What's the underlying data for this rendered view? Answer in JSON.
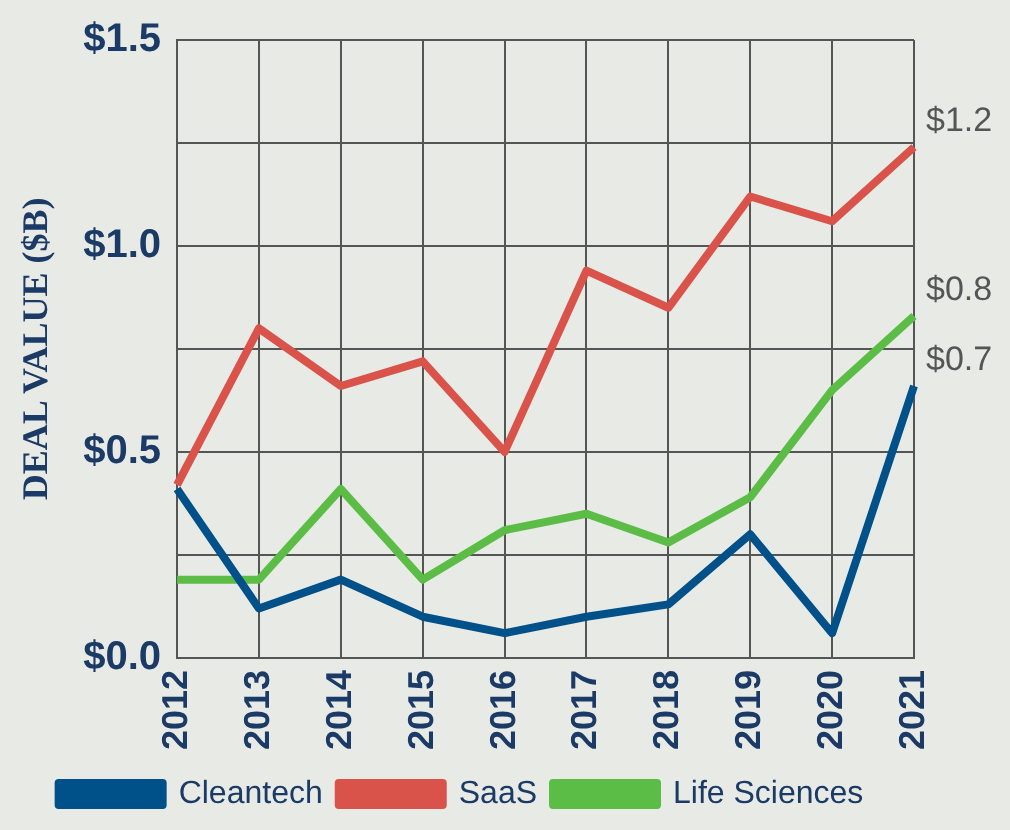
{
  "chart_data": {
    "type": "line",
    "ylabel": "DEAL VALUE ($B)",
    "categories": [
      "2012",
      "2013",
      "2014",
      "2015",
      "2016",
      "2017",
      "2018",
      "2019",
      "2020",
      "2021"
    ],
    "series": [
      {
        "name": "Cleantech",
        "color": "#00508a",
        "values": [
          0.41,
          0.12,
          0.19,
          0.1,
          0.06,
          0.1,
          0.13,
          0.3,
          0.06,
          0.66
        ],
        "value_labels": [
          null,
          null,
          null,
          null,
          null,
          null,
          null,
          null,
          null,
          "$0.7"
        ]
      },
      {
        "name": "SaaS",
        "color": "#d9534a",
        "values": [
          0.42,
          0.8,
          0.66,
          0.72,
          0.5,
          0.94,
          0.85,
          1.12,
          1.06,
          1.24
        ],
        "value_labels": [
          null,
          null,
          null,
          null,
          null,
          null,
          null,
          null,
          null,
          "$1.2"
        ]
      },
      {
        "name": "Life Sciences",
        "color": "#5cbd46",
        "values": [
          0.19,
          0.19,
          0.41,
          0.19,
          0.31,
          0.35,
          0.28,
          0.39,
          0.65,
          0.83
        ],
        "value_labels": [
          null,
          null,
          null,
          null,
          null,
          null,
          null,
          null,
          null,
          "$0.8"
        ]
      }
    ],
    "ylim": [
      0,
      1.5
    ],
    "yticks": [
      {
        "value": 0,
        "label": "$0.0"
      },
      {
        "value": 0.25,
        "label": null
      },
      {
        "value": 0.5,
        "label": "$0.5"
      },
      {
        "value": 0.75,
        "label": null
      },
      {
        "value": 1,
        "label": "$1.0"
      },
      {
        "value": 1.25,
        "label": null
      },
      {
        "value": 1.5,
        "label": "$1.5"
      }
    ],
    "grid": true,
    "legend": "bottom",
    "marker": "none",
    "line_style": "solid"
  }
}
